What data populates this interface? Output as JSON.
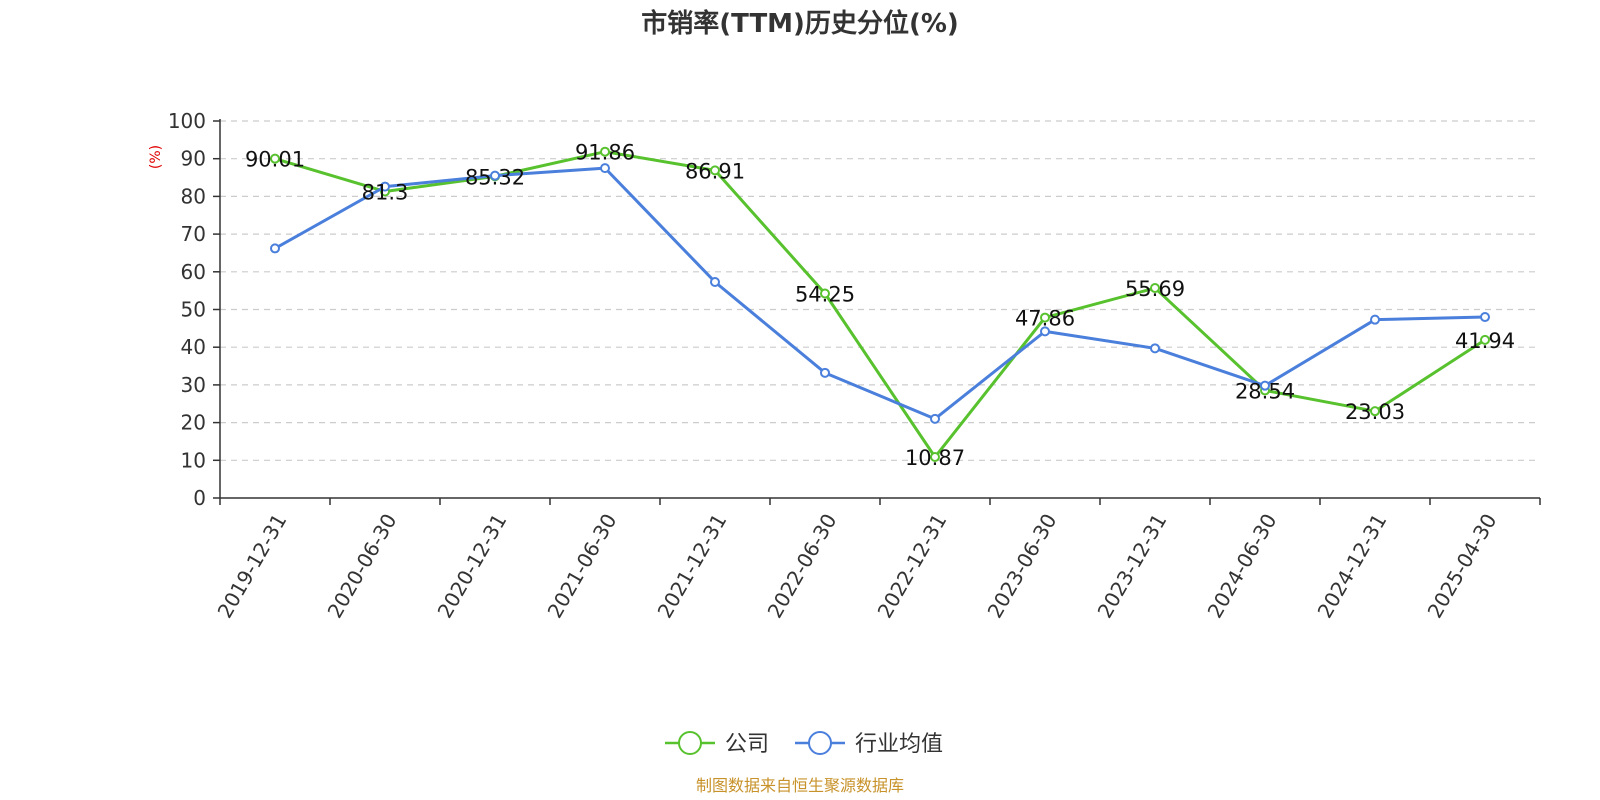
{
  "chart_data": {
    "type": "line",
    "title": "市销率(TTM)历史分位(%)",
    "ylabel": "(%)",
    "ylim": [
      0,
      100
    ],
    "yticks": [
      0,
      10,
      20,
      30,
      40,
      50,
      60,
      70,
      80,
      90,
      100
    ],
    "grid": true,
    "legend_position": "bottom",
    "categories": [
      "2019-12-31",
      "2020-06-30",
      "2020-12-31",
      "2021-06-30",
      "2021-12-31",
      "2022-06-30",
      "2022-12-31",
      "2023-06-30",
      "2023-12-31",
      "2024-06-30",
      "2024-12-31",
      "2025-04-30"
    ],
    "series": [
      {
        "name": "公司",
        "color": "#58c22e",
        "values": [
          90.01,
          81.3,
          85.32,
          91.86,
          86.91,
          54.25,
          10.87,
          47.86,
          55.69,
          28.54,
          23.03,
          41.94
        ],
        "labels": [
          "90.01",
          "81.3",
          "85.32",
          "91.86",
          "86.91",
          "54.25",
          "10.87",
          "47.86",
          "55.69",
          "28.54",
          "23.03",
          "41.94"
        ]
      },
      {
        "name": "行业均值",
        "color": "#4a7fdc",
        "values": [
          66.2,
          82.6,
          85.5,
          87.5,
          57.3,
          33.2,
          21.0,
          44.2,
          39.7,
          29.8,
          47.3,
          48.0
        ]
      }
    ],
    "source": "制图数据来自恒生聚源数据库"
  }
}
